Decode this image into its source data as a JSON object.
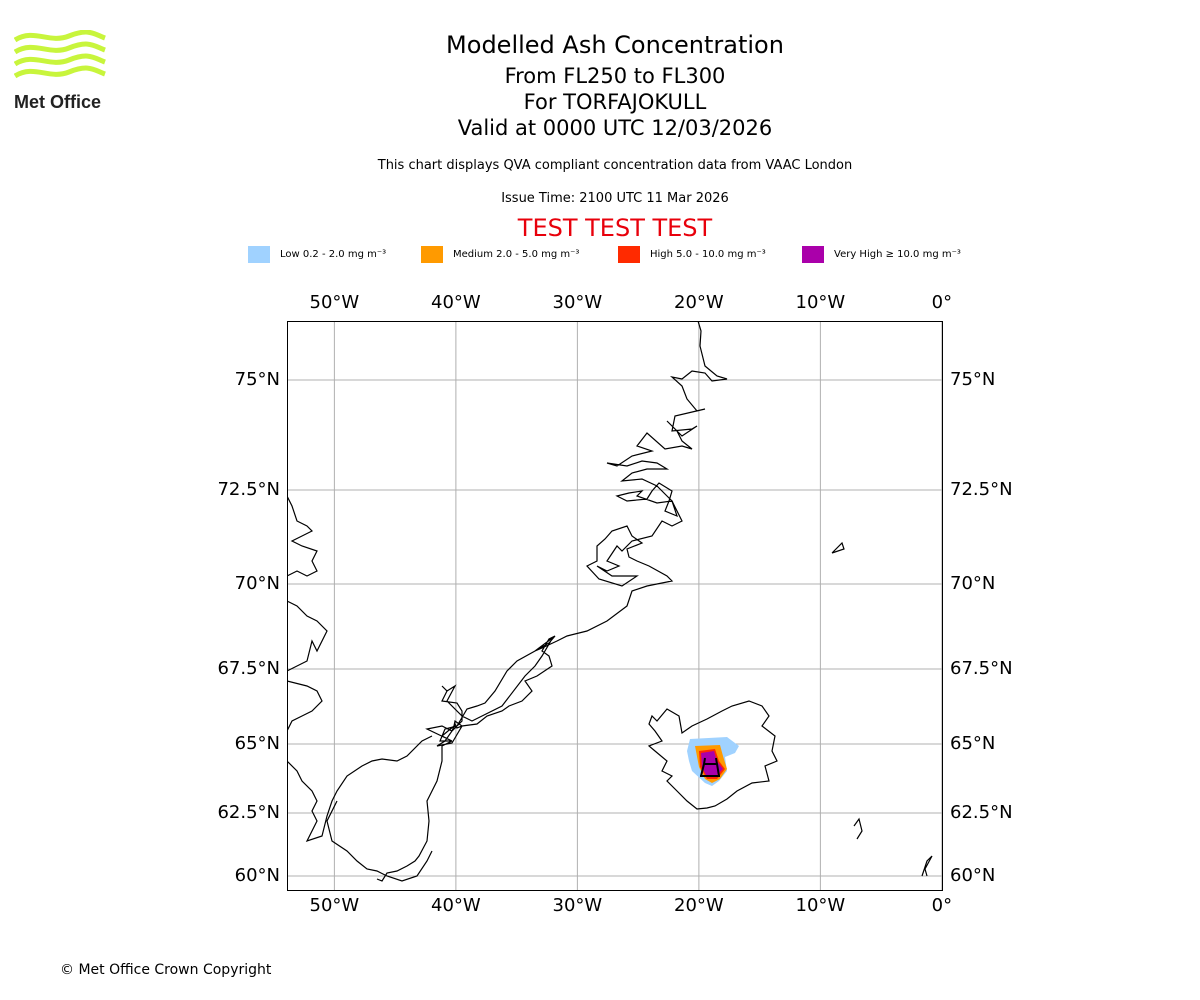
{
  "logo": {
    "text": "Met Office",
    "color": "#c8f53c"
  },
  "header": {
    "title": "Modelled Ash Concentration",
    "level": "From FL250 to FL300",
    "volcano": "For TORFAJOKULL",
    "valid": "Valid at 0000 UTC 12/03/2026",
    "description": "This chart displays QVA compliant concentration data from VAAC London",
    "issue_time": "Issue Time: 2100 UTC 11 Mar 2026",
    "test_banner": "TEST TEST TEST",
    "test_color": "#e8000b"
  },
  "legend": [
    {
      "label": "Low 0.2 - 2.0 mg m⁻³",
      "color": "#a0d2ff"
    },
    {
      "label": "Medium 2.0 - 5.0 mg m⁻³",
      "color": "#ff9a00"
    },
    {
      "label": "High 5.0 - 10.0 mg m⁻³",
      "color": "#ff2a00"
    },
    {
      "label": "Very High ≥ 10.0 mg m⁻³",
      "color": "#aa00aa"
    }
  ],
  "map": {
    "lon_ticks": [
      {
        "value": -50,
        "label": "50°W"
      },
      {
        "value": -40,
        "label": "40°W"
      },
      {
        "value": -30,
        "label": "30°W"
      },
      {
        "value": -20,
        "label": "20°W"
      },
      {
        "value": -10,
        "label": "10°W"
      },
      {
        "value": 0,
        "label": "0°"
      }
    ],
    "lat_ticks": [
      {
        "value": 75,
        "label": "75°N"
      },
      {
        "value": 72.5,
        "label": "72.5°N"
      },
      {
        "value": 70,
        "label": "70°N"
      },
      {
        "value": 67.5,
        "label": "67.5°N"
      },
      {
        "value": 65,
        "label": "65°N"
      },
      {
        "value": 62.5,
        "label": "62.5°N"
      },
      {
        "value": 60,
        "label": "60°N"
      }
    ],
    "volcano_symbol": "volcano-icon"
  },
  "footer": {
    "copyright": "© Met Office Crown Copyright"
  }
}
